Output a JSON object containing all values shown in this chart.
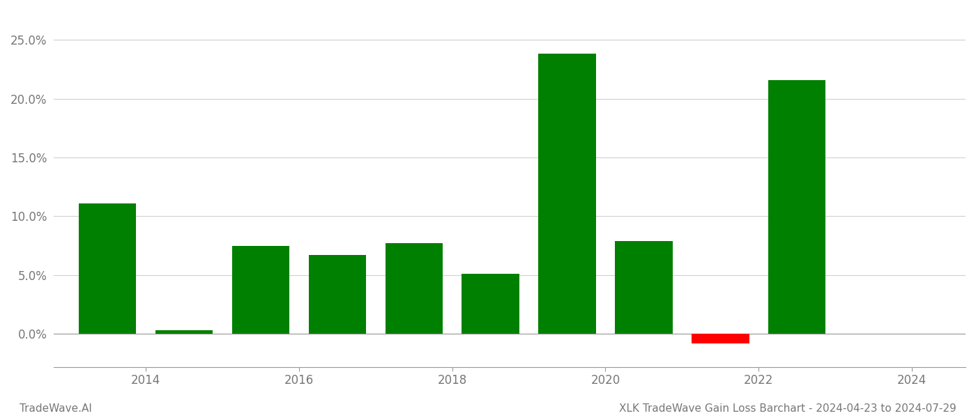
{
  "years": [
    2013,
    2014,
    2015,
    2016,
    2017,
    2018,
    2019,
    2020,
    2021,
    2022,
    2023
  ],
  "values": [
    0.111,
    0.003,
    0.075,
    0.067,
    0.077,
    0.051,
    0.238,
    0.079,
    -0.008,
    0.216,
    0.0
  ],
  "colors": [
    "#008000",
    "#008000",
    "#008000",
    "#008000",
    "#008000",
    "#008000",
    "#008000",
    "#008000",
    "#ff0000",
    "#008000",
    "#008000"
  ],
  "bar_positions": [
    0,
    1,
    2,
    3,
    4,
    5,
    6,
    7,
    8,
    9,
    10
  ],
  "xtick_positions": [
    0.5,
    2.5,
    4.5,
    6.5,
    8.5,
    10.5
  ],
  "xtick_labels": [
    "2014",
    "2016",
    "2018",
    "2020",
    "2022",
    "2024"
  ],
  "title": "XLK TradeWave Gain Loss Barchart - 2024-04-23 to 2024-07-29",
  "watermark": "TradeWave.AI",
  "ylim_min": -0.028,
  "ylim_max": 0.275,
  "yticks": [
    0.0,
    0.05,
    0.1,
    0.15,
    0.2,
    0.25
  ],
  "ytick_labels": [
    "0.0%",
    "5.0%",
    "10.0%",
    "15.0%",
    "20.0%",
    "25.0%"
  ],
  "bar_width": 0.75,
  "background_color": "#ffffff",
  "grid_color": "#d0d0d0",
  "axis_color": "#999999",
  "title_fontsize": 11,
  "watermark_fontsize": 11,
  "tick_fontsize": 12
}
